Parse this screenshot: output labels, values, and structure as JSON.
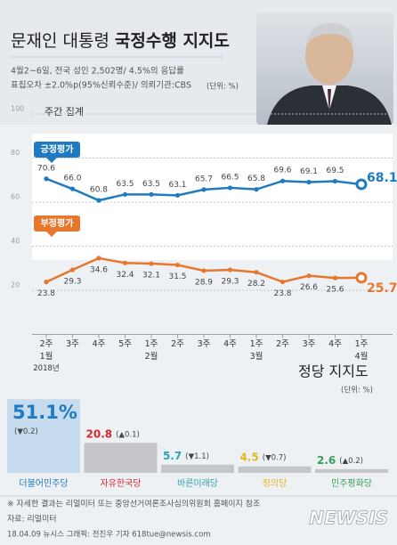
{
  "header": {
    "title_normal": "문재인 대통령",
    "title_bold": "국정수행 지지도",
    "notes": [
      "4월2~6일, 전국 성인 2,502명/ 4.5%의 응답률",
      "표집오차 ±2.0%p(95%신뢰수준)/ 의뢰기관:CBS"
    ],
    "unit": "(단위: %)"
  },
  "chart_data": [
    {
      "type": "line",
      "subtitle": "주간 집계",
      "categories": [
        "2주",
        "3주",
        "4주",
        "5주",
        "1주",
        "2주",
        "3주",
        "4주",
        "1주",
        "2주",
        "3주",
        "4주",
        "1주"
      ],
      "month_labels": [
        "1월",
        null,
        null,
        null,
        "2월",
        null,
        null,
        null,
        "3월",
        null,
        null,
        null,
        "4월"
      ],
      "year_labels": [
        "2018년",
        null,
        null,
        null,
        null,
        null,
        null,
        null,
        null,
        null,
        null,
        null,
        null
      ],
      "series": [
        {
          "name": "긍정평가",
          "color": "#1f7bc1",
          "values": [
            70.6,
            66.0,
            60.8,
            63.5,
            63.5,
            63.1,
            65.7,
            66.5,
            65.8,
            69.6,
            69.1,
            69.5,
            68.1
          ],
          "value_labels": [
            "70.6",
            "66.0",
            "60.8",
            "63.5",
            "63.5",
            "63.1",
            "65.7",
            "66.5",
            "65.8",
            "69.6",
            "69.1",
            "69.5",
            "68.1%"
          ]
        },
        {
          "name": "부정평가",
          "color": "#e8772e",
          "values": [
            23.8,
            29.3,
            34.6,
            32.4,
            32.1,
            31.5,
            28.9,
            29.3,
            28.2,
            23.8,
            26.6,
            25.6,
            25.7
          ],
          "value_labels": [
            "23.8",
            "29.3",
            "34.6",
            "32.4",
            "32.1",
            "31.5",
            "28.9",
            "29.3",
            "28.2",
            "23.8",
            "26.6",
            "25.6",
            "25.7%"
          ]
        }
      ],
      "ylim": [
        0,
        100
      ],
      "yticks": [
        20,
        40,
        60,
        80,
        100
      ],
      "grid": true
    },
    {
      "type": "bar",
      "title": "정당 지지도",
      "unit": "(단위: %)",
      "categories": [
        "더불어민주당",
        "자유한국당",
        "바른미래당",
        "정의당",
        "민주평화당"
      ],
      "values": [
        51.1,
        20.8,
        5.7,
        4.5,
        2.6
      ],
      "value_labels": [
        "51.1%",
        "20.8",
        "5.7",
        "4.5",
        "2.6"
      ],
      "changes": [
        "▼0.2",
        "▲0.1",
        "▼1.1",
        "▼0.7",
        "▲0.2"
      ],
      "label_colors": [
        "#1f7bc1",
        "#d32a2a",
        "#2fa3ad",
        "#e2b81f",
        "#3a9e5a"
      ],
      "bar_colors": [
        "#c7dbee",
        "#c4c6c9",
        "#c4c6c9",
        "#c4c6c9",
        "#c4c6c9"
      ]
    }
  ],
  "footer": {
    "note": "※ 자세한 결과는 리얼미터 또는 중앙선거여론조사심의위원회 홈페이지 참조",
    "source": "자료: 리얼미터",
    "credit": "18.04.09 뉴시스 그래픽: 전진우 기자 618tue@newsis.com",
    "logo": "NEWSIS"
  }
}
